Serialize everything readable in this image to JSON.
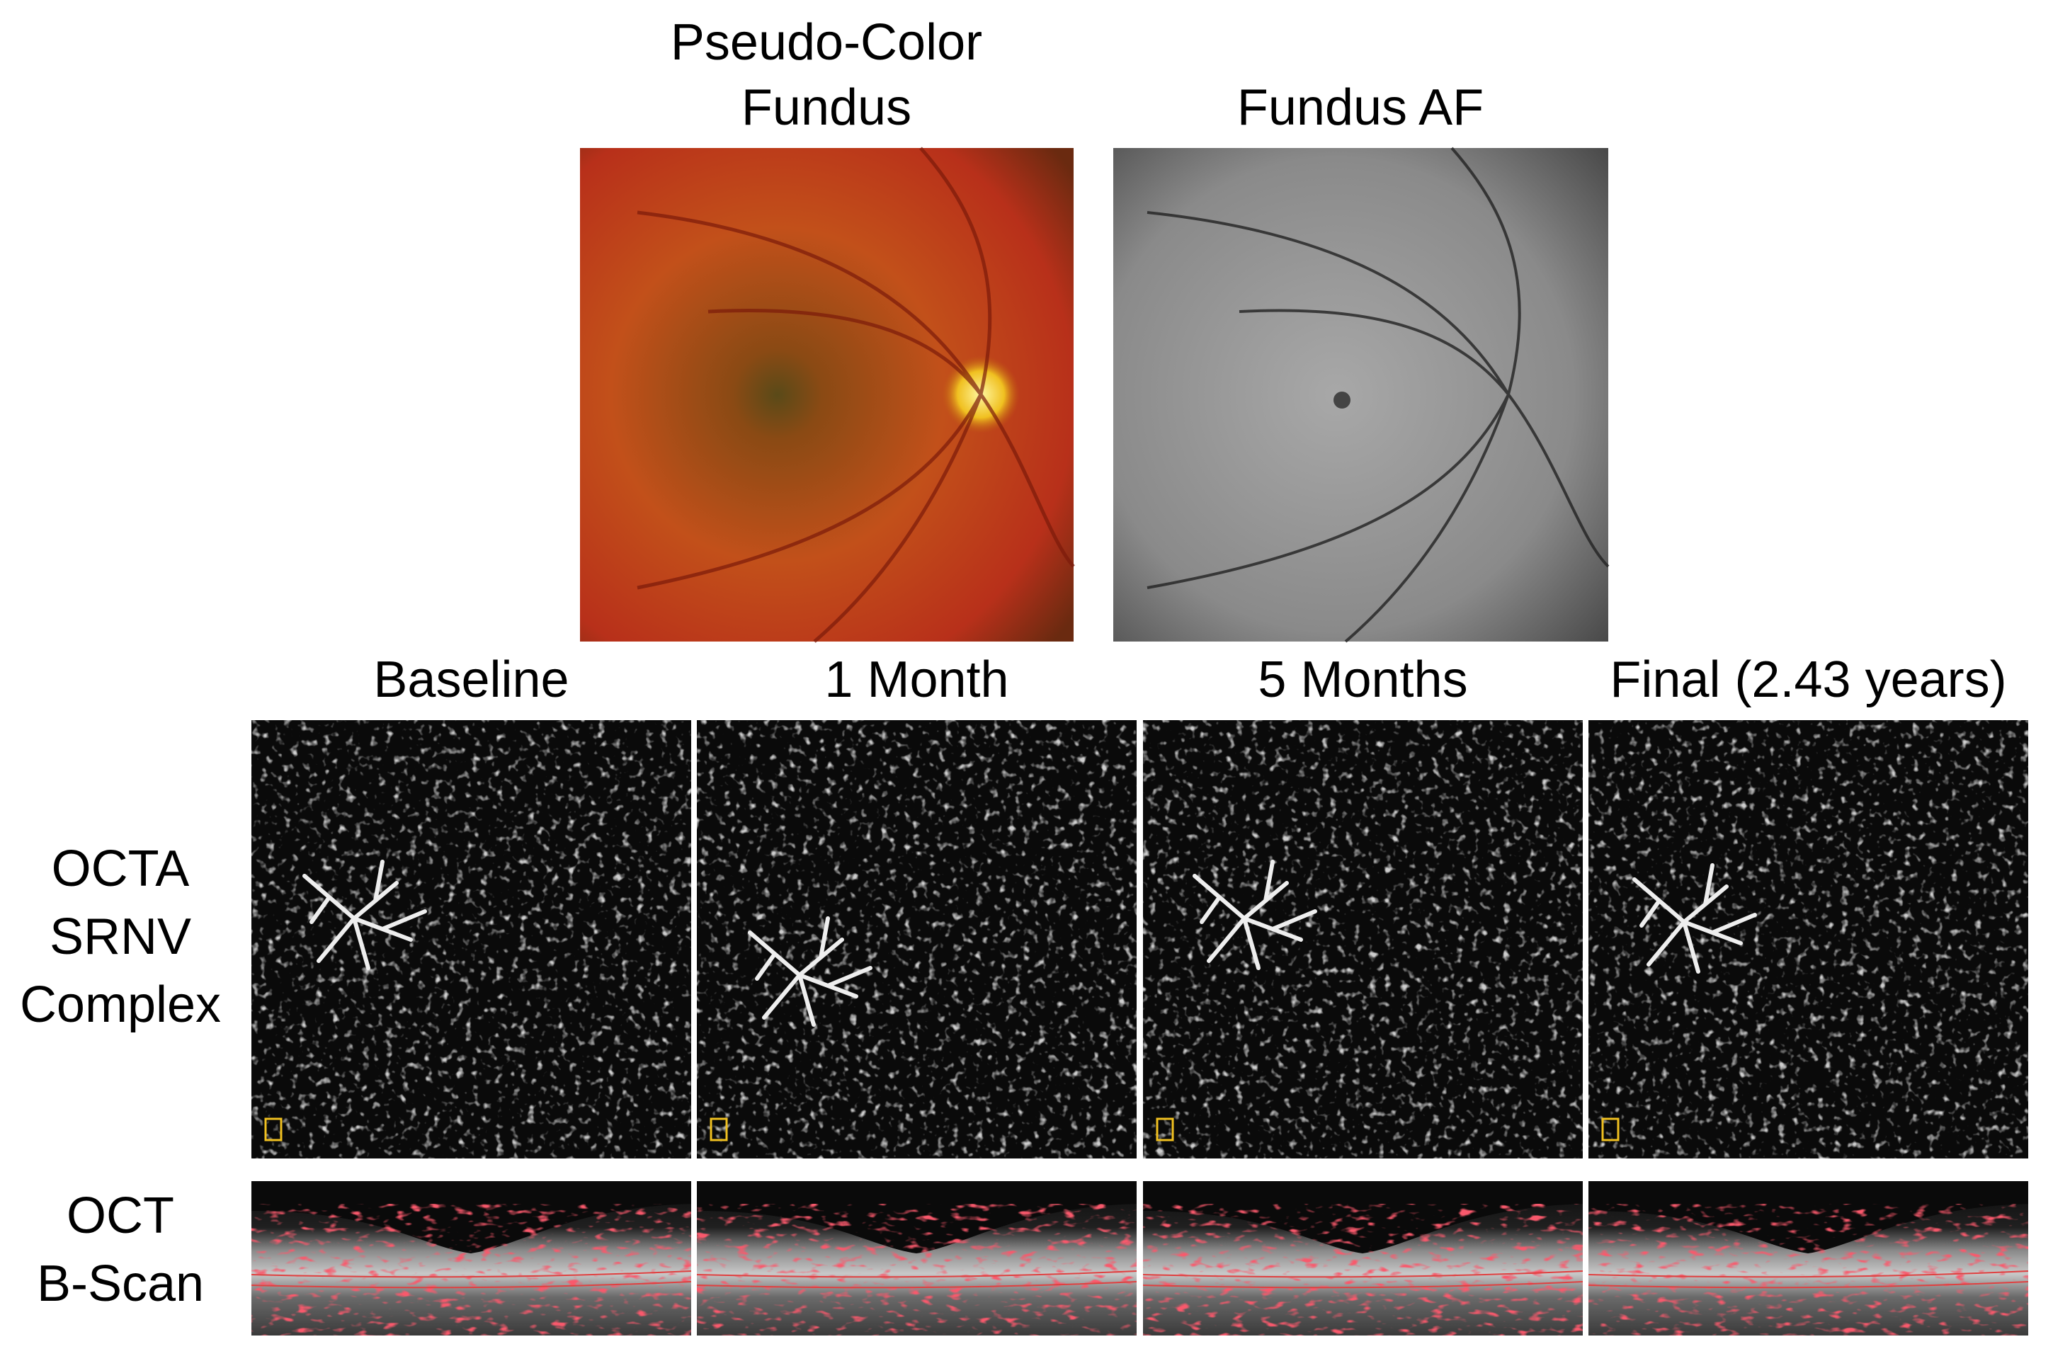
{
  "top_panels": [
    {
      "title_lines": [
        "Pseudo-Color",
        "Fundus"
      ]
    },
    {
      "title_lines": [
        "Fundus AF"
      ]
    }
  ],
  "timepoints": [
    "Baseline",
    "1 Month",
    "5 Months",
    "Final (2.43 years)"
  ],
  "rows": [
    {
      "label_lines": [
        "OCTA",
        "SRNV",
        "Complex"
      ]
    },
    {
      "label_lines": [
        "OCT",
        "B-Scan"
      ]
    }
  ]
}
